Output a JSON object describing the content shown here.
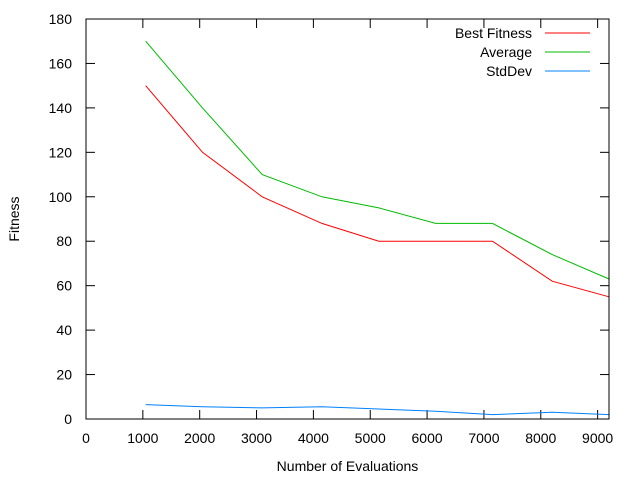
{
  "chart_data": {
    "type": "line",
    "xlabel": "Number of Evaluations",
    "ylabel": "Fitness",
    "xlim": [
      0,
      9200
    ],
    "ylim": [
      0,
      180
    ],
    "x_ticks": [
      0,
      1000,
      2000,
      3000,
      4000,
      5000,
      6000,
      7000,
      8000,
      9000
    ],
    "y_ticks": [
      0,
      20,
      40,
      60,
      80,
      100,
      120,
      140,
      160,
      180
    ],
    "legend_position": "top-right",
    "grid": false,
    "series": [
      {
        "name": "Best Fitness",
        "color": "#ff0000",
        "x": [
          1050,
          2050,
          3100,
          4150,
          5150,
          6150,
          7150,
          8200,
          9200
        ],
        "y": [
          150,
          120,
          100,
          88,
          80,
          80,
          80,
          62,
          55
        ]
      },
      {
        "name": "Average",
        "color": "#00bb00",
        "x": [
          1050,
          2050,
          3100,
          4150,
          5150,
          6150,
          7150,
          8200,
          9200
        ],
        "y": [
          170,
          140,
          110,
          100,
          95,
          88,
          88,
          74,
          63
        ]
      },
      {
        "name": "StdDev",
        "color": "#0080ff",
        "x": [
          1050,
          2050,
          3100,
          4150,
          5150,
          6150,
          7150,
          8200,
          9200
        ],
        "y": [
          6.5,
          5.5,
          5,
          5.5,
          4.5,
          3.5,
          2,
          3,
          2
        ]
      }
    ]
  }
}
